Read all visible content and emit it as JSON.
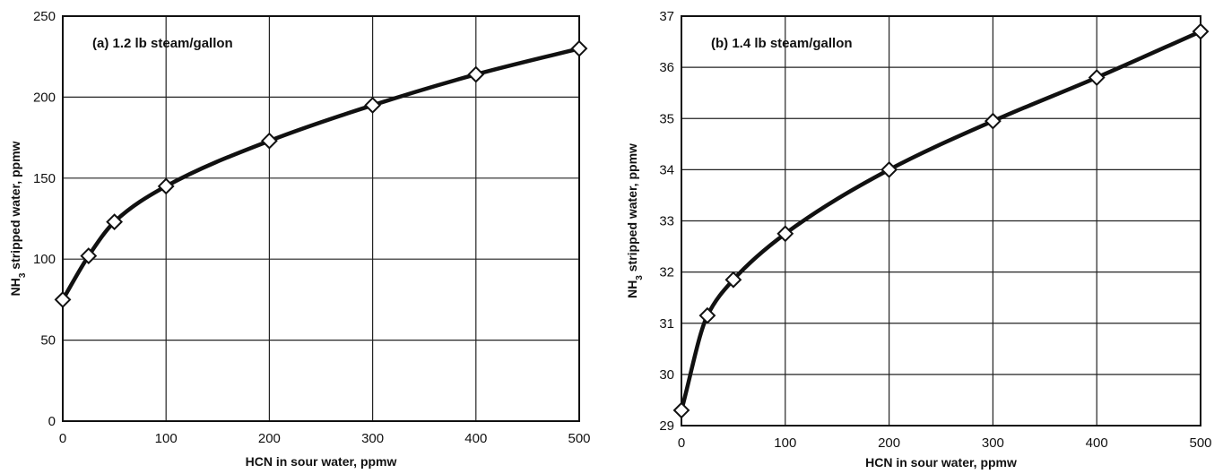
{
  "chart_data": [
    {
      "type": "line",
      "title": "(a) 1.2 lb steam/gallon",
      "xlabel": "HCN in sour water, ppmw",
      "ylabel": "NH3 stripped water, ppmw",
      "ylabel_sub": "3",
      "ylabel_pre": "NH",
      "ylabel_post": " stripped water, ppmw",
      "xlim": [
        0,
        500
      ],
      "ylim": [
        0,
        250
      ],
      "xticks": [
        0,
        100,
        200,
        300,
        400,
        500
      ],
      "yticks": [
        0,
        50,
        100,
        150,
        200,
        250
      ],
      "xtick_labels": [
        "0",
        "100",
        "200",
        "300",
        "400",
        "500"
      ],
      "ytick_labels": [
        "0",
        "50",
        "100",
        "150",
        "200",
        "250"
      ],
      "grid": true,
      "x": [
        0,
        25,
        50,
        100,
        200,
        300,
        400,
        500
      ],
      "y": [
        75,
        102,
        123,
        145,
        173,
        195,
        214,
        230
      ],
      "marker": "diamond",
      "line_color": "#111111"
    },
    {
      "type": "line",
      "title": "(b) 1.4 lb steam/gallon",
      "xlabel": "HCN in sour water, ppmw",
      "ylabel": "NH3 stripped water, ppmw",
      "ylabel_sub": "3",
      "ylabel_pre": "NH",
      "ylabel_post": " stripped water, ppmw",
      "xlim": [
        0,
        500
      ],
      "ylim": [
        29,
        37
      ],
      "xticks": [
        0,
        100,
        200,
        300,
        400,
        500
      ],
      "yticks": [
        29,
        30,
        31,
        32,
        33,
        34,
        35,
        36,
        37
      ],
      "xtick_labels": [
        "0",
        "100",
        "200",
        "300",
        "400",
        "500"
      ],
      "ytick_labels": [
        "29",
        "30",
        "31",
        "32",
        "33",
        "34",
        "35",
        "36",
        "37"
      ],
      "grid": true,
      "x": [
        0,
        25,
        50,
        100,
        200,
        300,
        400,
        500
      ],
      "y": [
        29.3,
        31.15,
        31.85,
        32.75,
        34.0,
        34.95,
        35.8,
        36.7
      ],
      "marker": "diamond",
      "line_color": "#111111"
    }
  ]
}
